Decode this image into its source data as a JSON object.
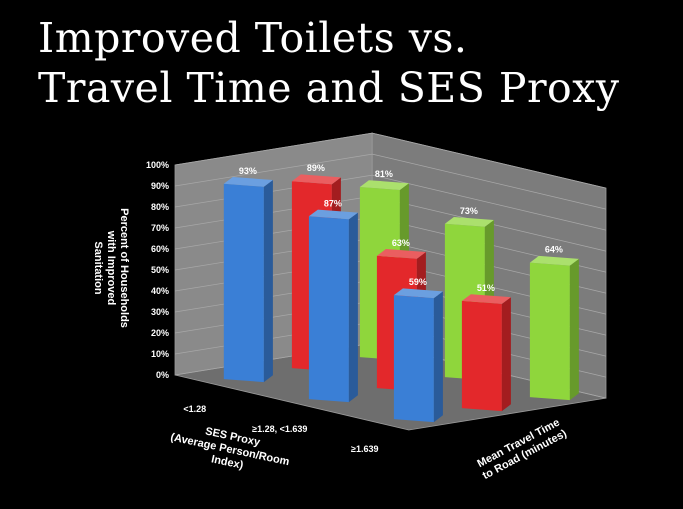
{
  "title_lines": [
    "Improved Toilets vs.",
    "Travel Time and SES Proxy"
  ],
  "chart_data": {
    "type": "bar",
    "subtype": "3d-column",
    "title": "Improved Toilets vs. Travel Time and SES Proxy",
    "ylabel_lines": [
      "Percent of Households",
      "with Improved",
      "Sanitation"
    ],
    "xlabel_lines": [
      "SES Proxy",
      "(Average Person/Room",
      "Index)"
    ],
    "zlabel_lines": [
      "Mean Travel Time",
      "to Road (minutes)"
    ],
    "ylim": [
      0,
      100
    ],
    "yticks": [
      "0%",
      "10%",
      "20%",
      "30%",
      "40%",
      "50%",
      "60%",
      "70%",
      "80%",
      "90%",
      "100%"
    ],
    "categories": [
      "<1.28",
      "≥1.28, <1.639",
      "≥1.639"
    ],
    "series": [
      {
        "values": [
          93,
          87,
          59
        ],
        "labels": [
          "93%",
          "87%",
          "59%"
        ],
        "color": "#3a7fd6"
      },
      {
        "values": [
          89,
          63,
          51
        ],
        "labels": [
          "89%",
          "63%",
          "51%"
        ],
        "color": "#e3282b"
      },
      {
        "values": [
          81,
          73,
          64
        ],
        "labels": [
          "81%",
          "73%",
          "64%"
        ],
        "color": "#8fd63c"
      }
    ],
    "grid": true,
    "legend": "none"
  }
}
